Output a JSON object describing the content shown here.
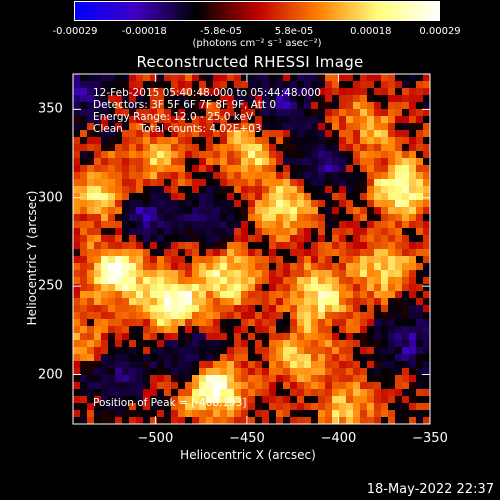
{
  "colorbar": {
    "tick_labels": [
      "-0.00029",
      "-0.00018",
      "-5.8e-05",
      "5.8e-05",
      "0.00018",
      "0.00029"
    ],
    "tick_values": [
      -0.00029,
      -0.00018,
      -5.8e-05,
      5.8e-05,
      0.00018,
      0.00029
    ],
    "unit_label": "(photons cm⁻² s⁻¹ asec⁻²)",
    "range": [
      -0.00029,
      0.00029
    ],
    "colors": [
      "#0000ff",
      "#4000c0",
      "#000000",
      "#c00000",
      "#ff8000",
      "#ffff80",
      "#ffffff"
    ]
  },
  "chart_data": {
    "type": "heatmap",
    "title": "Reconstructed RHESSI Image",
    "xlabel": "Heliocentric X (arcsec)",
    "ylabel": "Heliocentric Y (arcsec)",
    "xlim": [
      -545,
      -350
    ],
    "ylim": [
      172,
      370
    ],
    "x_ticks": [
      -500,
      -450,
      -400,
      -350
    ],
    "y_ticks": [
      200,
      250,
      300,
      350
    ],
    "annotations": {
      "time_range": "12-Feb-2015 05:40:48.000 to 05:44:48.000",
      "detectors": "Detectors: 3F 5F 6F 7F 8F 9F, Att 0",
      "energy_range": "Energy Range: 12.0 - 25.0 keV",
      "clean_counts": "Clean     Total counts: 4.02E+03",
      "peak": "Position of Peak = [-468,193]"
    },
    "peak_position": [
      -468,
      193
    ],
    "bright_sources": [
      {
        "x": -468,
        "y": 193,
        "intensity": 1.0
      },
      {
        "x": -520,
        "y": 258,
        "intensity": 0.95
      },
      {
        "x": -490,
        "y": 240,
        "intensity": 0.95
      },
      {
        "x": -460,
        "y": 255,
        "intensity": 0.7
      },
      {
        "x": -430,
        "y": 295,
        "intensity": 0.65
      },
      {
        "x": -450,
        "y": 325,
        "intensity": 0.55
      },
      {
        "x": -410,
        "y": 245,
        "intensity": 0.75
      },
      {
        "x": -365,
        "y": 305,
        "intensity": 0.85
      },
      {
        "x": -375,
        "y": 260,
        "intensity": 0.6
      },
      {
        "x": -530,
        "y": 300,
        "intensity": 0.6
      },
      {
        "x": -500,
        "y": 320,
        "intensity": 0.5
      },
      {
        "x": -420,
        "y": 210,
        "intensity": 0.55
      },
      {
        "x": -395,
        "y": 180,
        "intensity": 0.5
      },
      {
        "x": -540,
        "y": 220,
        "intensity": 0.4
      },
      {
        "x": -385,
        "y": 340,
        "intensity": 0.45
      }
    ],
    "negative_regions": [
      {
        "x": -505,
        "y": 290,
        "intensity": -0.6
      },
      {
        "x": -430,
        "y": 355,
        "intensity": -0.55
      },
      {
        "x": -480,
        "y": 210,
        "intensity": -0.6
      },
      {
        "x": -520,
        "y": 200,
        "intensity": -0.5
      },
      {
        "x": -360,
        "y": 220,
        "intensity": -0.55
      },
      {
        "x": -410,
        "y": 320,
        "intensity": -0.5
      },
      {
        "x": -470,
        "y": 290,
        "intensity": -0.45
      },
      {
        "x": -540,
        "y": 360,
        "intensity": -0.5
      }
    ]
  },
  "footer": {
    "timestamp": "18-May-2022 22:37"
  }
}
